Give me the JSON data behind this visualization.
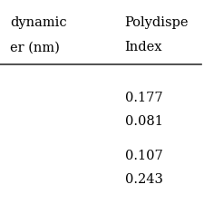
{
  "col1_header_line1": "dynamic",
  "col1_header_line2": "er (nm)",
  "col2_header_line1": "Polydispe",
  "col2_header_line2": "Index",
  "group1": [
    "0.177",
    "0.081"
  ],
  "group2": [
    "0.107",
    "0.243"
  ],
  "bg_color": "#ffffff",
  "text_color": "#000000",
  "font_size": 10.5,
  "line_color": "#333333",
  "line_width": 1.2,
  "fig_width": 2.26,
  "fig_height": 2.26,
  "dpi": 100
}
